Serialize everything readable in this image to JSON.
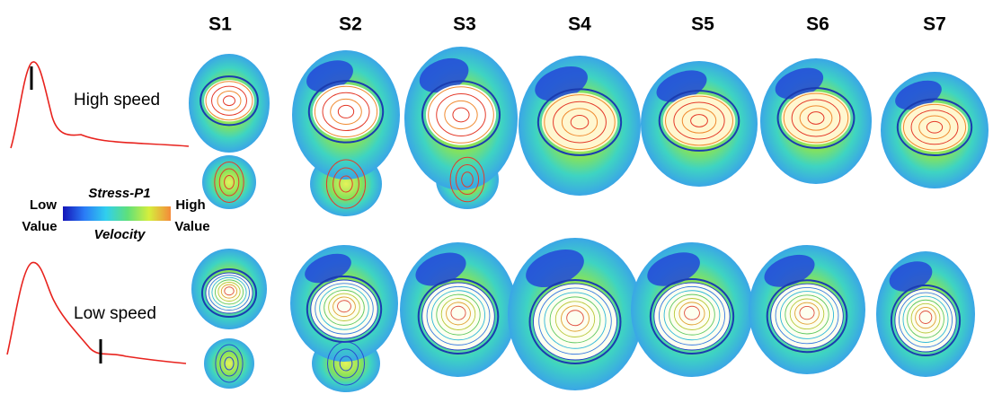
{
  "columns": [
    "S1",
    "S2",
    "S3",
    "S4",
    "S5",
    "S6",
    "S7"
  ],
  "rows": [
    {
      "label": "High speed"
    },
    {
      "label": "Low speed"
    }
  ],
  "legend": {
    "title": "Stress-P1",
    "subtitle": "Velocity",
    "low": [
      "Low",
      "Value"
    ],
    "high": [
      "High",
      "Value"
    ]
  }
}
